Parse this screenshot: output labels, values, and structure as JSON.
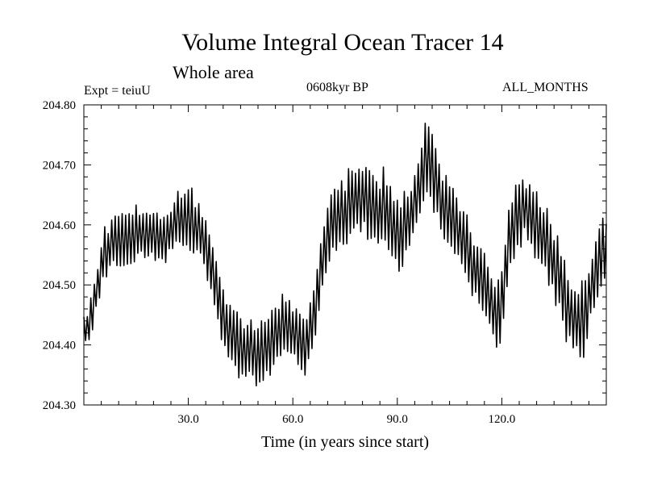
{
  "chart_data": {
    "type": "line",
    "title": "Volume Integral Ocean Tracer 14",
    "subtitle": "Whole area",
    "annotations": {
      "experiment": "Expt = teiuU",
      "epoch": "0608kyr BP",
      "months": "ALL_MONTHS"
    },
    "xlabel": "Time (in years since start)",
    "ylabel": "",
    "xlim": [
      0,
      150
    ],
    "ylim": [
      204.3,
      204.8
    ],
    "x_major_ticks": [
      30,
      60,
      90,
      120
    ],
    "x_tick_labels": [
      "30.0",
      "60.0",
      "90.0",
      "120.0"
    ],
    "y_major_ticks": [
      204.3,
      204.4,
      204.5,
      204.6,
      204.7,
      204.8
    ],
    "y_tick_labels": [
      "204.30",
      "204.40",
      "204.50",
      "204.60",
      "204.70",
      "204.80"
    ],
    "grid": false,
    "series": [
      {
        "name": "Volume Integral Ocean Tracer 14",
        "line_color": "#000000",
        "sampling": "annual cycle (high=Northern summer, low=winter), one max and one min per year",
        "x": [
          0,
          2,
          4,
          6,
          8,
          10,
          12,
          14,
          16,
          18,
          20,
          22,
          24,
          26,
          28,
          30,
          32,
          34,
          36,
          38,
          40,
          42,
          44,
          46,
          48,
          50,
          52,
          54,
          56,
          58,
          60,
          62,
          64,
          66,
          68,
          70,
          72,
          74,
          76,
          78,
          80,
          82,
          84,
          86,
          88,
          90,
          92,
          94,
          96,
          98,
          100,
          102,
          104,
          106,
          108,
          110,
          112,
          114,
          116,
          118,
          120,
          122,
          124,
          126,
          128,
          130,
          132,
          134,
          136,
          138,
          140,
          142,
          144,
          146,
          148,
          150
        ],
        "values": [
          204.42,
          204.44,
          204.5,
          204.55,
          204.56,
          204.57,
          204.575,
          204.585,
          204.59,
          204.585,
          204.58,
          204.575,
          204.585,
          204.6,
          204.61,
          204.615,
          204.6,
          204.58,
          204.54,
          204.5,
          204.45,
          204.42,
          204.4,
          204.39,
          204.385,
          204.38,
          204.39,
          204.41,
          204.43,
          204.44,
          204.42,
          204.41,
          204.4,
          204.45,
          204.52,
          204.58,
          204.61,
          204.62,
          204.63,
          204.645,
          204.64,
          204.63,
          204.62,
          204.63,
          204.61,
          204.58,
          204.59,
          204.62,
          204.66,
          204.72,
          204.7,
          204.65,
          204.62,
          204.6,
          204.58,
          204.56,
          204.53,
          204.52,
          204.5,
          204.46,
          204.47,
          204.56,
          204.62,
          204.63,
          204.62,
          204.6,
          204.58,
          204.55,
          204.52,
          204.48,
          204.44,
          204.43,
          204.45,
          204.5,
          204.54,
          204.55
        ],
        "annual_half_amplitude": [
          0.03,
          0.03,
          0.035,
          0.035,
          0.035,
          0.04,
          0.04,
          0.04,
          0.04,
          0.04,
          0.04,
          0.04,
          0.04,
          0.04,
          0.045,
          0.045,
          0.045,
          0.04,
          0.04,
          0.04,
          0.04,
          0.045,
          0.04,
          0.04,
          0.045,
          0.045,
          0.045,
          0.045,
          0.045,
          0.045,
          0.045,
          0.04,
          0.045,
          0.045,
          0.045,
          0.045,
          0.05,
          0.05,
          0.05,
          0.05,
          0.05,
          0.05,
          0.05,
          0.05,
          0.05,
          0.05,
          0.05,
          0.05,
          0.05,
          0.05,
          0.055,
          0.05,
          0.05,
          0.05,
          0.05,
          0.05,
          0.05,
          0.05,
          0.05,
          0.05,
          0.05,
          0.05,
          0.05,
          0.05,
          0.05,
          0.05,
          0.05,
          0.05,
          0.05,
          0.05,
          0.05,
          0.05,
          0.05,
          0.05,
          0.05,
          0.05
        ]
      }
    ]
  }
}
